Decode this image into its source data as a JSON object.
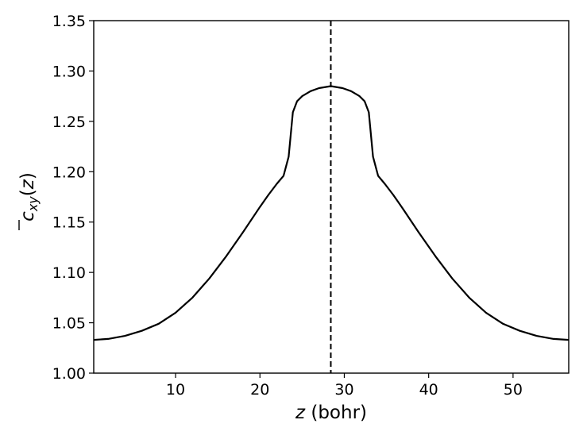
{
  "chart_data": {
    "type": "line",
    "title": "",
    "xlabel": "z (bohr)",
    "ylabel": "c̄xy(z)",
    "xlim": [
      0.3,
      56.6
    ],
    "ylim": [
      1.0,
      1.35
    ],
    "xticks": [
      10,
      20,
      30,
      40,
      50
    ],
    "yticks": [
      1.0,
      1.05,
      1.1,
      1.15,
      1.2,
      1.25,
      1.3,
      1.35
    ],
    "ytick_labels": [
      "1.00",
      "1.05",
      "1.10",
      "1.15",
      "1.20",
      "1.25",
      "1.30",
      "1.35"
    ],
    "grid": false,
    "legend": "none",
    "vline": {
      "x": 28.4,
      "style": "dashed",
      "color": "#000000"
    },
    "series": [
      {
        "color": "#000000",
        "x": [
          0.3,
          2,
          4,
          6,
          8,
          10,
          12,
          14,
          16,
          18,
          20,
          21,
          22,
          22.8,
          23.4,
          23.9,
          24.4,
          25.0,
          26.0,
          27.0,
          28.4,
          29.8,
          30.8,
          31.8,
          32.4,
          32.9,
          33.4,
          34.0,
          34.8,
          35.8,
          36.8,
          38.8,
          40.8,
          42.8,
          44.8,
          46.8,
          48.8,
          50.8,
          52.8,
          54.8,
          56.6
        ],
        "y": [
          1.033,
          1.034,
          1.037,
          1.042,
          1.049,
          1.06,
          1.075,
          1.094,
          1.116,
          1.14,
          1.165,
          1.177,
          1.188,
          1.196,
          1.215,
          1.259,
          1.27,
          1.275,
          1.28,
          1.283,
          1.285,
          1.283,
          1.28,
          1.275,
          1.27,
          1.259,
          1.215,
          1.196,
          1.188,
          1.177,
          1.165,
          1.14,
          1.116,
          1.094,
          1.075,
          1.06,
          1.049,
          1.042,
          1.037,
          1.034,
          1.033
        ]
      }
    ]
  }
}
